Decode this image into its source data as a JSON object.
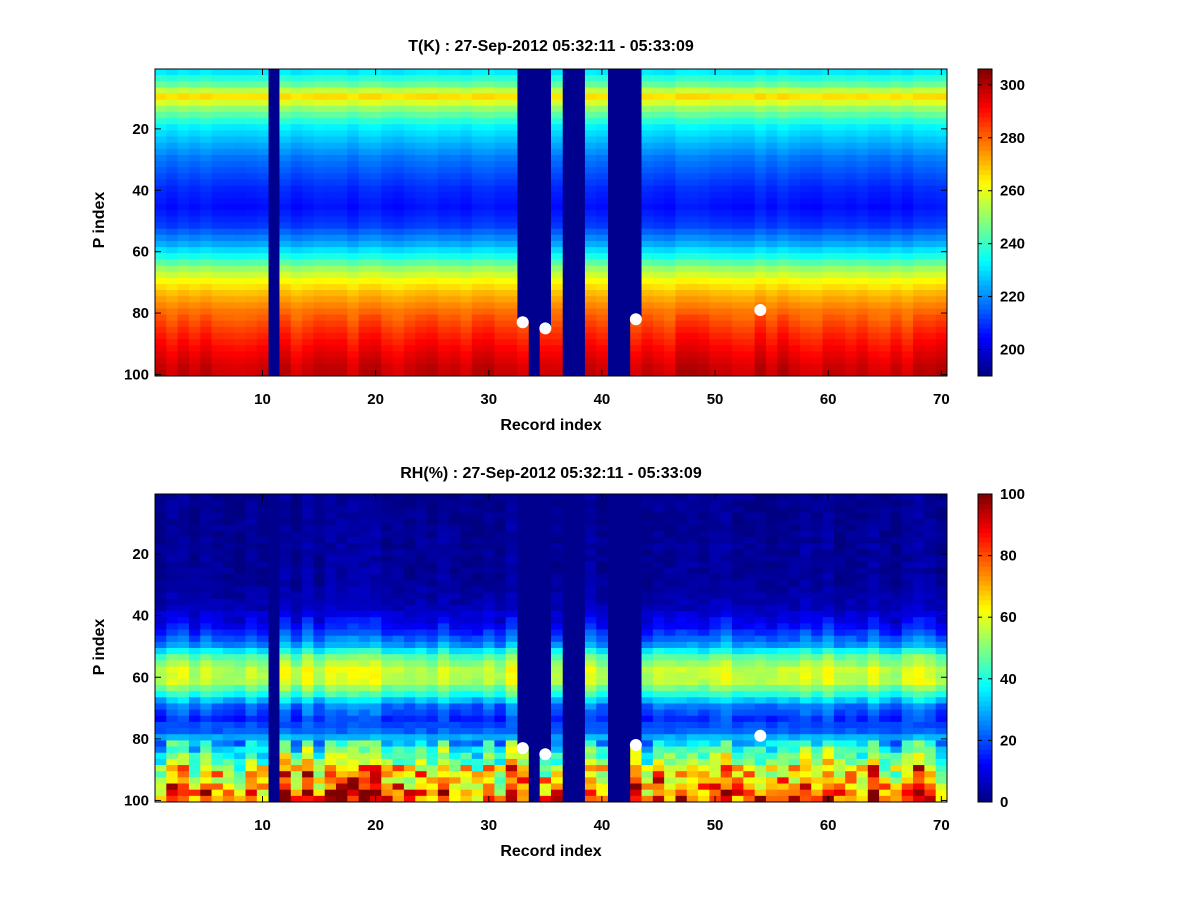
{
  "chart_data": [
    {
      "type": "heatmap",
      "title": "T(K) : 27-Sep-2012 05:32:11 - 05:33:09",
      "xlabel": "Record index",
      "ylabel": "P index",
      "xlim": [
        0.5,
        70.5
      ],
      "ylim": [
        100.5,
        0.5
      ],
      "y_reversed": true,
      "xticks": [
        10,
        20,
        30,
        40,
        50,
        60,
        70
      ],
      "yticks": [
        20,
        40,
        60,
        80,
        100
      ],
      "colormap": "jet",
      "colorbar": {
        "range": [
          190,
          306
        ],
        "ticks": [
          200,
          220,
          240,
          260,
          280,
          300
        ]
      },
      "missing_records": [
        11,
        34,
        37,
        38,
        41,
        42
      ],
      "missing_value_color": "#00008f",
      "bottom_row_missing": 100,
      "surface_cutoff": [
        {
          "records": [
            33
          ],
          "p_index": 83
        },
        {
          "records": [
            35
          ],
          "p_index": 85
        },
        {
          "records": [
            43
          ],
          "p_index": 82
        }
      ],
      "profile_knots": {
        "p_index": [
          1,
          6,
          10,
          14,
          20,
          30,
          40,
          46,
          52,
          58,
          62,
          66,
          70,
          74,
          80,
          86,
          92,
          99
        ],
        "value": [
          228,
          245,
          266,
          250,
          232,
          218,
          209,
          206,
          211,
          224,
          236,
          251,
          262,
          270,
          279,
          286,
          292,
          298
        ]
      },
      "markers": [
        {
          "record": 33,
          "p_index": 83
        },
        {
          "record": 35,
          "p_index": 85
        },
        {
          "record": 43,
          "p_index": 82
        },
        {
          "record": 54,
          "p_index": 79
        }
      ]
    },
    {
      "type": "heatmap",
      "title": "RH(%) : 27-Sep-2012 05:32:11 - 05:33:09",
      "xlabel": "Record index",
      "ylabel": "P index",
      "xlim": [
        0.5,
        70.5
      ],
      "ylim": [
        100.5,
        0.5
      ],
      "y_reversed": true,
      "xticks": [
        10,
        20,
        30,
        40,
        50,
        60,
        70
      ],
      "yticks": [
        20,
        40,
        60,
        80,
        100
      ],
      "colormap": "jet",
      "colorbar": {
        "range": [
          0,
          100
        ],
        "ticks": [
          0,
          20,
          40,
          60,
          80,
          100
        ]
      },
      "missing_records": [
        11,
        34,
        37,
        38,
        41,
        42
      ],
      "missing_value_color": "#00008f",
      "bottom_row_missing": 100,
      "surface_cutoff": [
        {
          "records": [
            33
          ],
          "p_index": 83
        },
        {
          "records": [
            35
          ],
          "p_index": 85
        },
        {
          "records": [
            43
          ],
          "p_index": 82
        }
      ],
      "profile_knots": {
        "p_index": [
          1,
          30,
          38,
          44,
          50,
          54,
          58,
          62,
          66,
          70,
          74,
          78,
          82,
          86,
          90,
          94,
          99
        ],
        "value": [
          2,
          3,
          6,
          14,
          28,
          48,
          58,
          57,
          42,
          24,
          18,
          22,
          38,
          50,
          58,
          66,
          76
        ]
      },
      "markers": [
        {
          "record": 33,
          "p_index": 83
        },
        {
          "record": 35,
          "p_index": 85
        },
        {
          "record": 43,
          "p_index": 82
        },
        {
          "record": 54,
          "p_index": 79
        }
      ]
    }
  ]
}
